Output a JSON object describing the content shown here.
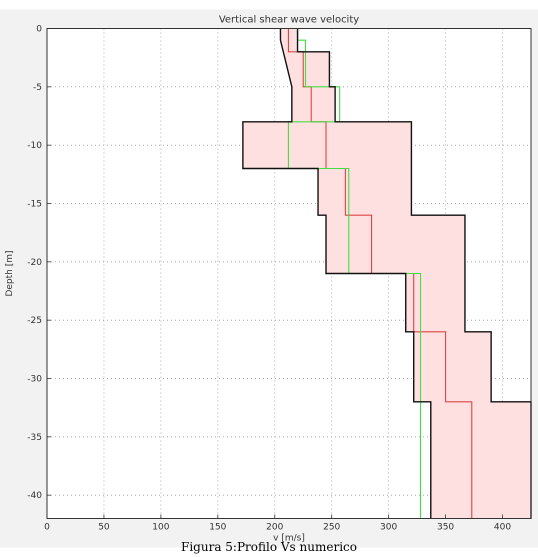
{
  "chart_data": {
    "type": "line",
    "title": "Vertical shear wave velocity",
    "xlabel": "v [m/s]",
    "ylabel": "Depth [m]",
    "xlim": [
      0,
      425
    ],
    "ylim": [
      -42,
      0
    ],
    "xticks": [
      0,
      50,
      100,
      150,
      200,
      250,
      300,
      350,
      400
    ],
    "yticks": [
      0,
      -5,
      -10,
      -15,
      -20,
      -25,
      -30,
      -35,
      -40
    ],
    "grid": true,
    "band": {
      "fill": "#ffe0e0",
      "min_profile": [
        [
          205,
          0
        ],
        [
          205,
          -1
        ],
        [
          215,
          -5
        ],
        [
          215,
          -8
        ],
        [
          172,
          -8
        ],
        [
          172,
          -12
        ],
        [
          238,
          -12
        ],
        [
          238,
          -16
        ],
        [
          245,
          -16
        ],
        [
          245,
          -21
        ],
        [
          315,
          -21
        ],
        [
          315,
          -26
        ],
        [
          322,
          -26
        ],
        [
          322,
          -32
        ],
        [
          337,
          -32
        ],
        [
          337,
          -42
        ]
      ],
      "max_profile": [
        [
          220,
          0
        ],
        [
          220,
          -2
        ],
        [
          248,
          -2
        ],
        [
          248,
          -5
        ],
        [
          253,
          -5
        ],
        [
          253,
          -8
        ],
        [
          320,
          -8
        ],
        [
          320,
          -16
        ],
        [
          367,
          -16
        ],
        [
          367,
          -26
        ],
        [
          390,
          -26
        ],
        [
          390,
          -32
        ],
        [
          425,
          -32
        ],
        [
          425,
          -42
        ]
      ]
    },
    "series": [
      {
        "color": "#dd4444",
        "points": [
          [
            212,
            0
          ],
          [
            212,
            -2
          ],
          [
            225,
            -2
          ],
          [
            225,
            -5
          ],
          [
            232,
            -5
          ],
          [
            232,
            -8
          ],
          [
            245,
            -8
          ],
          [
            245,
            -12
          ],
          [
            262,
            -12
          ],
          [
            262,
            -16
          ],
          [
            285,
            -16
          ],
          [
            285,
            -21
          ],
          [
            322,
            -21
          ],
          [
            322,
            -26
          ],
          [
            350,
            -26
          ],
          [
            350,
            -32
          ],
          [
            373,
            -32
          ],
          [
            373,
            -42
          ]
        ]
      },
      {
        "color": "#44dd44",
        "points": [
          [
            220,
            0
          ],
          [
            220,
            -1
          ],
          [
            227,
            -1
          ],
          [
            227,
            -5
          ],
          [
            257,
            -5
          ],
          [
            257,
            -8
          ],
          [
            212,
            -8
          ],
          [
            212,
            -12
          ],
          [
            265,
            -12
          ],
          [
            265,
            -21
          ],
          [
            328,
            -21
          ],
          [
            328,
            -42
          ]
        ]
      },
      {
        "color": "#111111",
        "points": [
          [
            205,
            0
          ],
          [
            205,
            -1
          ],
          [
            215,
            -5
          ],
          [
            215,
            -8
          ],
          [
            172,
            -8
          ],
          [
            172,
            -12
          ],
          [
            238,
            -12
          ],
          [
            238,
            -16
          ],
          [
            245,
            -16
          ],
          [
            245,
            -21
          ],
          [
            315,
            -21
          ],
          [
            315,
            -26
          ],
          [
            322,
            -26
          ],
          [
            322,
            -32
          ],
          [
            337,
            -32
          ],
          [
            337,
            -42
          ]
        ]
      },
      {
        "color": "#111111",
        "points": [
          [
            220,
            0
          ],
          [
            220,
            -2
          ],
          [
            248,
            -2
          ],
          [
            248,
            -5
          ],
          [
            253,
            -5
          ],
          [
            253,
            -8
          ],
          [
            320,
            -8
          ],
          [
            320,
            -16
          ],
          [
            367,
            -16
          ],
          [
            367,
            -26
          ],
          [
            390,
            -26
          ],
          [
            390,
            -32
          ],
          [
            425,
            -32
          ],
          [
            425,
            -42
          ]
        ]
      }
    ]
  },
  "caption": "Figura 5:Profilo Vs numerico"
}
